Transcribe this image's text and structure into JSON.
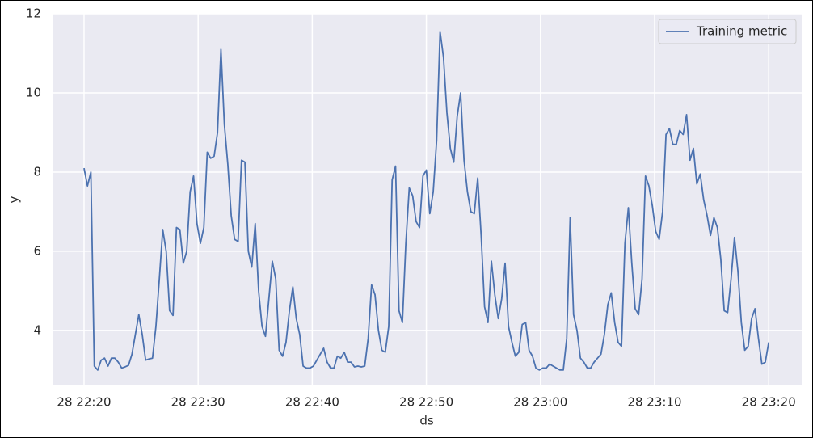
{
  "chart_data": {
    "type": "line",
    "xlabel": "ds",
    "ylabel": "y",
    "x": [
      20,
      20.3,
      20.6,
      20.9,
      21.2,
      21.5,
      21.8,
      22.1,
      22.4,
      22.7,
      23,
      23.3,
      23.6,
      23.9,
      24.2,
      24.5,
      24.8,
      25.1,
      25.4,
      25.7,
      26,
      26.3,
      26.6,
      26.9,
      27.2,
      27.5,
      27.8,
      28.1,
      28.4,
      28.7,
      29,
      29.3,
      29.6,
      29.9,
      30.2,
      30.5,
      30.8,
      31.1,
      31.4,
      31.7,
      32,
      32.3,
      32.6,
      32.9,
      33.2,
      33.5,
      33.8,
      34.1,
      34.4,
      34.7,
      35,
      35.3,
      35.6,
      35.9,
      36.2,
      36.5,
      36.8,
      37.1,
      37.4,
      37.7,
      38,
      38.3,
      38.6,
      38.9,
      39.2,
      39.5,
      39.8,
      40.1,
      40.4,
      40.7,
      41,
      41.3,
      41.6,
      41.9,
      42.2,
      42.5,
      42.8,
      43.1,
      43.4,
      43.7,
      44,
      44.3,
      44.6,
      44.9,
      45.2,
      45.5,
      45.8,
      46.1,
      46.4,
      46.7,
      47,
      47.3,
      47.6,
      47.9,
      48.2,
      48.5,
      48.8,
      49.1,
      49.4,
      49.7,
      50,
      50.3,
      50.6,
      50.9,
      51.2,
      51.5,
      51.8,
      52.1,
      52.4,
      52.7,
      53,
      53.3,
      53.6,
      53.9,
      54.2,
      54.5,
      54.8,
      55.1,
      55.4,
      55.7,
      56,
      56.3,
      56.6,
      56.9,
      57.2,
      57.5,
      57.8,
      58.1,
      58.4,
      58.7,
      59,
      59.3,
      59.6,
      59.9,
      60.2,
      60.5,
      60.8,
      61.1,
      61.4,
      61.7,
      62,
      62.3,
      62.6,
      62.9,
      63.2,
      63.5,
      63.8,
      64.1,
      64.4,
      64.7,
      65,
      65.3,
      65.6,
      65.9,
      66.2,
      66.5,
      66.8,
      67.1,
      67.4,
      67.7,
      68,
      68.3,
      68.6,
      68.9,
      69.2,
      69.5,
      69.8,
      70.1,
      70.4,
      70.7,
      71,
      71.3,
      71.6,
      71.9,
      72.2,
      72.5,
      72.8,
      73.1,
      73.4,
      73.7,
      74,
      74.3,
      74.6,
      74.9,
      75.2,
      75.5,
      75.8,
      76.1,
      76.4,
      76.7,
      77,
      77.3,
      77.6,
      77.9,
      78.2,
      78.5,
      78.8,
      79.1,
      79.4,
      79.7,
      80
    ],
    "series": [
      {
        "name": "Training metric",
        "color": "#4c72b0",
        "values": [
          8.1,
          7.65,
          8,
          3.1,
          3.0,
          3.25,
          3.3,
          3.1,
          3.3,
          3.3,
          3.2,
          3.05,
          3.08,
          3.12,
          3.4,
          3.9,
          4.4,
          3.9,
          3.25,
          3.28,
          3.3,
          4.1,
          5.3,
          6.55,
          6.0,
          4.5,
          4.38,
          6.6,
          6.55,
          5.7,
          6.0,
          7.5,
          7.9,
          6.7,
          6.2,
          6.6,
          8.5,
          8.35,
          8.4,
          9.0,
          11.1,
          9.2,
          8.2,
          6.9,
          6.3,
          6.25,
          8.3,
          8.25,
          6.0,
          5.6,
          6.7,
          5.0,
          4.1,
          3.85,
          4.8,
          5.75,
          5.3,
          3.5,
          3.35,
          3.7,
          4.5,
          5.1,
          4.3,
          3.9,
          3.1,
          3.05,
          3.05,
          3.1,
          3.25,
          3.4,
          3.55,
          3.2,
          3.05,
          3.05,
          3.35,
          3.3,
          3.45,
          3.2,
          3.2,
          3.08,
          3.1,
          3.08,
          3.1,
          3.8,
          5.15,
          4.9,
          4.0,
          3.5,
          3.45,
          4.1,
          7.8,
          8.15,
          4.5,
          4.2,
          6.2,
          7.6,
          7.4,
          6.75,
          6.6,
          7.9,
          8.05,
          6.95,
          7.5,
          8.8,
          11.55,
          10.9,
          9.5,
          8.6,
          8.25,
          9.4,
          10.0,
          8.3,
          7.5,
          7.0,
          6.95,
          7.85,
          6.4,
          4.6,
          4.2,
          5.75,
          4.9,
          4.3,
          4.8,
          5.7,
          4.1,
          3.7,
          3.35,
          3.45,
          4.15,
          4.2,
          3.5,
          3.35,
          3.05,
          3.0,
          3.05,
          3.05,
          3.15,
          3.1,
          3.05,
          3.0,
          3.0,
          3.8,
          6.85,
          4.4,
          4.0,
          3.3,
          3.2,
          3.05,
          3.05,
          3.2,
          3.3,
          3.4,
          3.9,
          4.65,
          4.95,
          4.2,
          3.7,
          3.6,
          6.2,
          7.1,
          5.7,
          4.55,
          4.4,
          5.3,
          7.9,
          7.65,
          7.15,
          6.5,
          6.3,
          7.0,
          8.95,
          9.1,
          8.7,
          8.7,
          9.05,
          8.95,
          9.45,
          8.3,
          8.6,
          7.7,
          7.95,
          7.3,
          6.9,
          6.4,
          6.85,
          6.6,
          5.8,
          4.5,
          4.45,
          5.3,
          6.35,
          5.5,
          4.2,
          3.5,
          3.6,
          4.3,
          4.55,
          3.8,
          3.15,
          3.2,
          3.7
        ]
      }
    ],
    "xlim": [
      17.24,
      82.96
    ],
    "xticks": [
      {
        "value": 20,
        "label": "28 22:20"
      },
      {
        "value": 30,
        "label": "28 22:30"
      },
      {
        "value": 40,
        "label": "28 22:40"
      },
      {
        "value": 50,
        "label": "28 22:50"
      },
      {
        "value": 60,
        "label": "28 23:00"
      },
      {
        "value": 70,
        "label": "28 23:10"
      },
      {
        "value": 80,
        "label": "28 23:20"
      }
    ],
    "ylim": [
      2.61,
      12
    ],
    "yticks": [
      4,
      6,
      8,
      10,
      12
    ],
    "grid": true,
    "legend": "upper right"
  }
}
